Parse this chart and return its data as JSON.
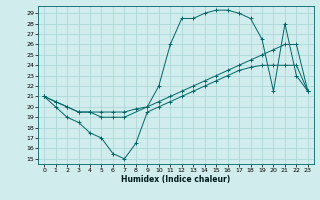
{
  "xlabel": "Humidex (Indice chaleur)",
  "background_color": "#d0ecec",
  "grid_color": "#a8d4d4",
  "line_color": "#006666",
  "xlim": [
    -0.5,
    23.5
  ],
  "ylim": [
    14.5,
    29.7
  ],
  "xticks": [
    0,
    1,
    2,
    3,
    4,
    5,
    6,
    7,
    8,
    9,
    10,
    11,
    12,
    13,
    14,
    15,
    16,
    17,
    18,
    19,
    20,
    21,
    22,
    23
  ],
  "yticks": [
    15,
    16,
    17,
    18,
    19,
    20,
    21,
    22,
    23,
    24,
    25,
    26,
    27,
    28,
    29
  ],
  "line1_x": [
    0,
    1,
    2,
    3,
    4,
    5,
    6,
    7,
    8,
    9,
    10,
    11,
    12,
    13,
    14,
    15,
    16,
    17,
    18,
    19,
    20,
    21,
    22,
    23
  ],
  "line1_y": [
    21.0,
    20.0,
    19.0,
    18.5,
    17.5,
    17.0,
    15.5,
    15.0,
    16.5,
    19.5,
    20.0,
    20.5,
    21.0,
    21.5,
    22.0,
    22.5,
    23.0,
    23.5,
    23.8,
    24.0,
    24.0,
    24.0,
    24.0,
    21.5
  ],
  "line2_x": [
    0,
    1,
    2,
    3,
    4,
    5,
    6,
    7,
    8,
    9,
    10,
    11,
    12,
    13,
    14,
    15,
    16,
    17,
    18,
    19,
    20,
    21,
    22,
    23
  ],
  "line2_y": [
    21.0,
    20.5,
    20.0,
    19.5,
    19.5,
    19.5,
    19.5,
    19.5,
    19.8,
    20.0,
    20.5,
    21.0,
    21.5,
    22.0,
    22.5,
    23.0,
    23.5,
    24.0,
    24.5,
    25.0,
    25.5,
    26.0,
    26.0,
    21.5
  ],
  "line3_x": [
    0,
    1,
    2,
    3,
    4,
    5,
    6,
    7,
    9,
    10,
    11,
    12,
    13,
    14,
    15,
    16,
    17,
    18,
    19,
    20,
    21,
    22,
    23
  ],
  "line3_y": [
    21.0,
    20.5,
    20.0,
    19.5,
    19.5,
    19.0,
    19.0,
    19.0,
    20.0,
    22.0,
    26.0,
    28.5,
    28.5,
    29.0,
    29.3,
    29.3,
    29.0,
    28.5,
    26.5,
    21.5,
    28.0,
    23.0,
    21.5
  ]
}
